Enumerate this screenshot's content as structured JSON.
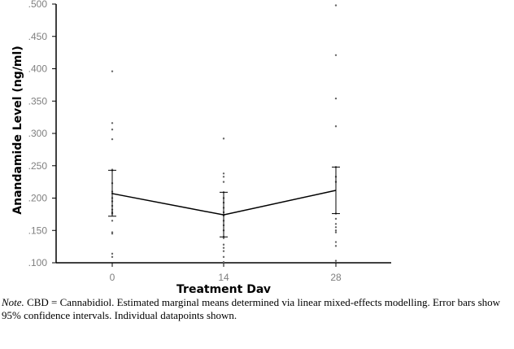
{
  "chart_data": {
    "type": "line",
    "title": "",
    "xlabel": "Treatment Day",
    "ylabel": "Anandamide Level (ng/ml)",
    "categories": [
      "0",
      "14",
      "28"
    ],
    "ylim": [
      0.1,
      0.5
    ],
    "yticks": [
      ".100",
      ".150",
      ".200",
      ".250",
      ".300",
      ".350",
      ".400",
      ".450",
      ".500"
    ],
    "grid": false,
    "legend": null,
    "series": [
      {
        "name": "Estimated marginal mean",
        "values": [
          0.207,
          0.174,
          0.212
        ],
        "ci_lower": [
          0.172,
          0.14,
          0.176
        ],
        "ci_upper": [
          0.243,
          0.209,
          0.248
        ]
      }
    ],
    "individual_points": [
      [
        0.396,
        0.316,
        0.306,
        0.291,
        0.244,
        0.243,
        0.223,
        0.21,
        0.207,
        0.2,
        0.195,
        0.188,
        0.182,
        0.178,
        0.176,
        0.165,
        0.147,
        0.145,
        0.114,
        0.109
      ],
      [
        0.292,
        0.238,
        0.233,
        0.225,
        0.209,
        0.2,
        0.193,
        0.185,
        0.178,
        0.173,
        0.165,
        0.158,
        0.15,
        0.14,
        0.138,
        0.128,
        0.123,
        0.118,
        0.109,
        0.101
      ],
      [
        0.498,
        0.421,
        0.354,
        0.311,
        0.248,
        0.233,
        0.225,
        0.176,
        0.168,
        0.16,
        0.155,
        0.15,
        0.147,
        0.132,
        0.126,
        0.103
      ]
    ]
  },
  "note": {
    "label": "Note.",
    "text": " CBD = Cannabidiol. Estimated marginal means determined via linear mixed-effects modelling. Error bars show 95% confidence intervals. Individual datapoints shown."
  }
}
